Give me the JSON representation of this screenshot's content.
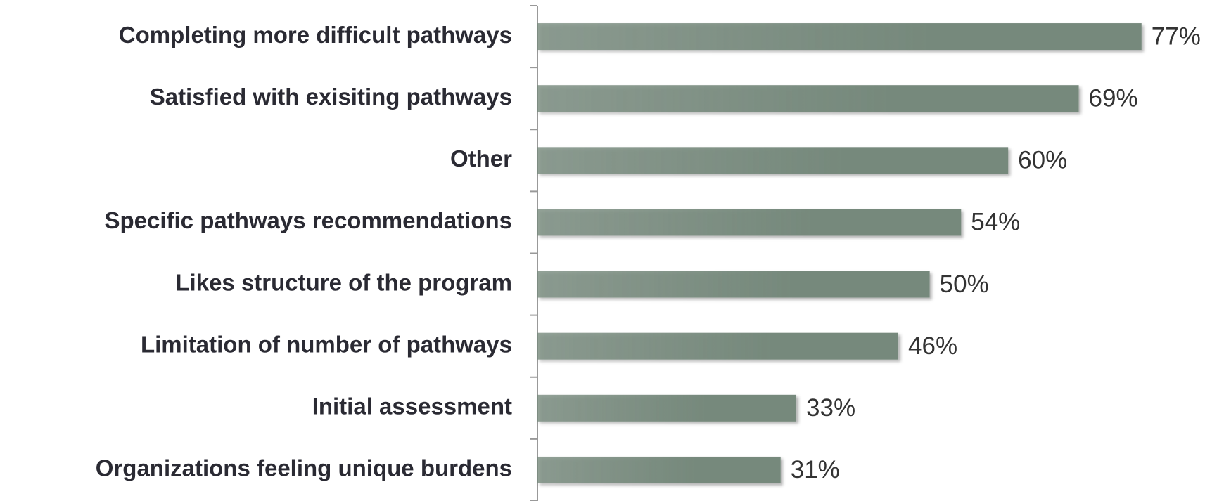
{
  "chart_data": {
    "type": "bar",
    "orientation": "horizontal",
    "categories": [
      "Completing more difficult pathways",
      "Satisfied with exisiting pathways",
      "Other",
      "Specific pathways recommendations",
      "Likes structure of the program",
      "Limitation of number of pathways",
      "Initial assessment",
      "Organizations feeling unique burdens"
    ],
    "values": [
      77,
      69,
      60,
      54,
      50,
      46,
      33,
      31
    ],
    "value_labels": [
      "77%",
      "69%",
      "60%",
      "54%",
      "50%",
      "46%",
      "33%",
      "31%"
    ],
    "color": "#76897c",
    "xlim": [
      0,
      85
    ]
  }
}
